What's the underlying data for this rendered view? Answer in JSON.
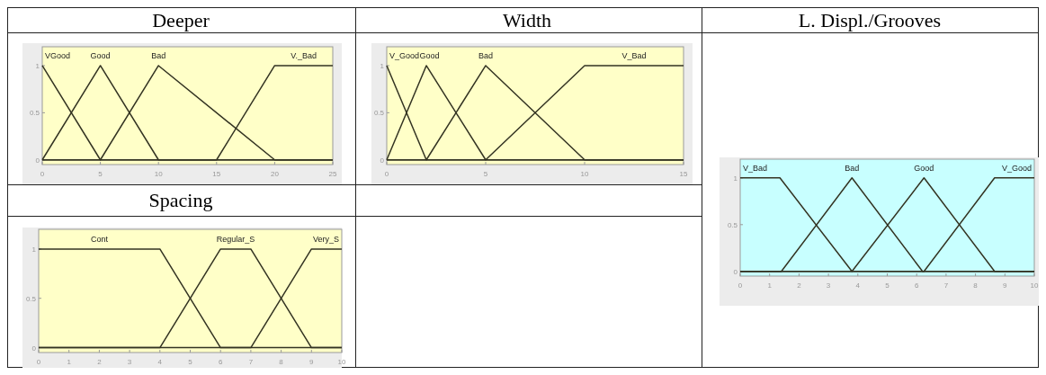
{
  "chart_data": [
    {
      "type": "line",
      "title": "Deeper",
      "xlim": [
        0,
        25
      ],
      "ylim": [
        -0.05,
        1.2
      ],
      "xticks": [
        0,
        5,
        10,
        15,
        20,
        25
      ],
      "yticks": [
        0,
        0.5,
        1
      ],
      "legend": false,
      "grid": false,
      "series": [
        {
          "name": "VGood",
          "color": "#333322",
          "x": [
            0,
            5,
            25
          ],
          "values": [
            1,
            0,
            0
          ]
        },
        {
          "name": "Good",
          "color": "#333322",
          "x": [
            0,
            5,
            10,
            25
          ],
          "values": [
            0,
            1,
            0,
            0
          ]
        },
        {
          "name": "Bad",
          "color": "#333322",
          "x": [
            0,
            5,
            10,
            20,
            25
          ],
          "values": [
            0,
            0,
            1,
            0,
            0
          ]
        },
        {
          "name": "V._Bad",
          "color": "#333322",
          "x": [
            0,
            15,
            20,
            25
          ],
          "values": [
            0,
            0,
            1,
            1
          ]
        }
      ]
    },
    {
      "type": "line",
      "title": "Width",
      "xlim": [
        0,
        15
      ],
      "ylim": [
        -0.05,
        1.2
      ],
      "xticks": [
        0,
        5,
        10,
        15
      ],
      "yticks": [
        0,
        0.5,
        1
      ],
      "legend": false,
      "grid": false,
      "series": [
        {
          "name": "V_Good",
          "color": "#333322",
          "x": [
            0,
            2,
            15
          ],
          "values": [
            1,
            0,
            0
          ]
        },
        {
          "name": "Good",
          "color": "#333322",
          "x": [
            0,
            2,
            5,
            15
          ],
          "values": [
            0,
            1,
            0,
            0
          ]
        },
        {
          "name": "Bad",
          "color": "#333322",
          "x": [
            0,
            2,
            5,
            10,
            15
          ],
          "values": [
            0,
            0,
            1,
            0,
            0
          ]
        },
        {
          "name": "V_Bad",
          "color": "#333322",
          "x": [
            0,
            5,
            10,
            15
          ],
          "values": [
            0,
            0,
            1,
            1
          ]
        }
      ]
    },
    {
      "type": "line",
      "title": "L. Displ./Grooves",
      "xlim": [
        0,
        10
      ],
      "ylim": [
        -0.05,
        1.2
      ],
      "xticks": [
        0,
        1,
        2,
        3,
        4,
        5,
        6,
        7,
        8,
        9,
        10
      ],
      "yticks": [
        0,
        0.5,
        1
      ],
      "legend": false,
      "grid": false,
      "series": [
        {
          "name": "V_Bad",
          "color": "#333322",
          "x": [
            0,
            1.35,
            3.8,
            10
          ],
          "values": [
            1,
            1,
            0,
            0
          ]
        },
        {
          "name": "Bad",
          "color": "#333322",
          "x": [
            0,
            1.4,
            3.8,
            6.2,
            10
          ],
          "values": [
            0,
            0,
            1,
            0,
            0
          ]
        },
        {
          "name": "Good",
          "color": "#333322",
          "x": [
            0,
            3.8,
            6.25,
            8.65,
            10
          ],
          "values": [
            0,
            0,
            1,
            0,
            0
          ]
        },
        {
          "name": "V_Good",
          "color": "#333322",
          "x": [
            0,
            6.25,
            8.65,
            10
          ],
          "values": [
            0,
            0,
            1,
            1
          ]
        }
      ]
    },
    {
      "type": "line",
      "title": "Spacing",
      "xlim": [
        0,
        10
      ],
      "ylim": [
        -0.05,
        1.2
      ],
      "xticks": [
        0,
        1,
        2,
        3,
        4,
        5,
        6,
        7,
        8,
        9,
        10
      ],
      "yticks": [
        0,
        0.5,
        1
      ],
      "legend": false,
      "grid": false,
      "series": [
        {
          "name": "Cont",
          "color": "#333322",
          "x": [
            0,
            4,
            6,
            10
          ],
          "values": [
            1,
            1,
            0,
            0
          ]
        },
        {
          "name": "Regular_S",
          "color": "#333322",
          "x": [
            0,
            4,
            6,
            7,
            9,
            10
          ],
          "values": [
            0,
            0,
            1,
            1,
            0,
            0
          ]
        },
        {
          "name": "Very_S",
          "color": "#333322",
          "x": [
            0,
            7,
            9,
            10
          ],
          "values": [
            0,
            0,
            1,
            1
          ]
        }
      ]
    }
  ]
}
